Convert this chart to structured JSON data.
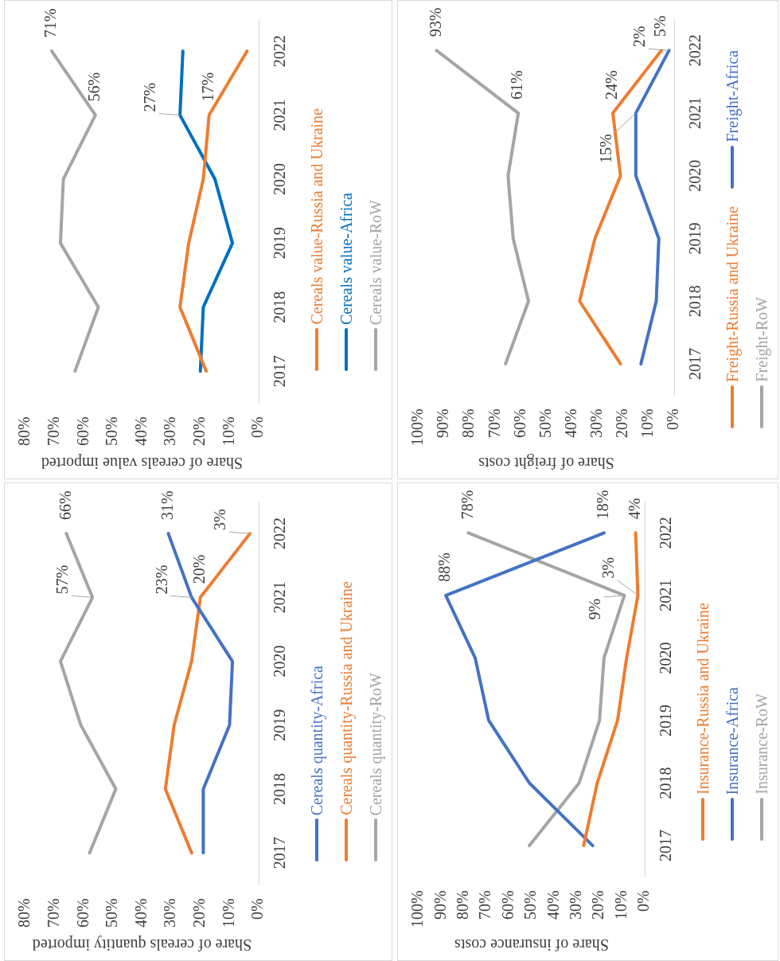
{
  "chart_data": [
    {
      "type": "line",
      "orientation": "horizontal",
      "xlabel": "Share of cereals value imported",
      "legend": "right",
      "marker": "none",
      "categories": [
        "2022",
        "2021",
        "2020",
        "2019",
        "2018",
        "2017"
      ],
      "xlim": [
        80,
        0
      ],
      "xticks": [
        {
          "value": 80,
          "label": "80%"
        },
        {
          "value": 70,
          "label": "70%"
        },
        {
          "value": 60,
          "label": "60%"
        },
        {
          "value": 50,
          "label": "50%"
        },
        {
          "value": 40,
          "label": "40%"
        },
        {
          "value": 30,
          "label": "30%"
        },
        {
          "value": 20,
          "label": "20%"
        },
        {
          "value": 10,
          "label": "10%"
        },
        {
          "value": 0,
          "label": "0%"
        }
      ],
      "series": [
        {
          "name": "Cereals value-Russia and Ukraine",
          "color": "#ed7d31",
          "values": [
            4,
            17,
            19,
            24,
            27,
            18
          ],
          "value_labels": [
            null,
            "17%",
            null,
            null,
            null,
            null
          ]
        },
        {
          "name": "Cereals value-Africa",
          "color": "#0070c0",
          "values": [
            26,
            27,
            15,
            9,
            19,
            20
          ],
          "value_labels": [
            null,
            "27%",
            null,
            null,
            null,
            null
          ]
        },
        {
          "name": "Cereals value-RoW",
          "color": "#a5a5a5",
          "values": [
            71,
            56,
            67,
            68,
            55,
            63
          ],
          "value_labels": [
            "71%",
            "56%",
            null,
            null,
            null,
            null
          ]
        }
      ]
    },
    {
      "type": "line",
      "orientation": "horizontal",
      "xlabel": "Share of cereals quantity imported",
      "legend": "right",
      "marker": "none",
      "categories": [
        "2022",
        "2021",
        "2020",
        "2019",
        "2018",
        "2017"
      ],
      "xlim": [
        80,
        0
      ],
      "xticks": [
        {
          "value": 80,
          "label": "80%"
        },
        {
          "value": 70,
          "label": "70%"
        },
        {
          "value": 60,
          "label": "60%"
        },
        {
          "value": 50,
          "label": "50%"
        },
        {
          "value": 40,
          "label": "40%"
        },
        {
          "value": 30,
          "label": "30%"
        },
        {
          "value": 20,
          "label": "20%"
        },
        {
          "value": 10,
          "label": "10%"
        },
        {
          "value": 0,
          "label": "0%"
        }
      ],
      "series": [
        {
          "name": "Cereals quantity-Africa",
          "color": "#4472c4",
          "values": [
            31,
            23,
            9,
            10,
            19,
            19
          ],
          "value_labels": [
            "31%",
            "23%",
            null,
            null,
            null,
            null
          ]
        },
        {
          "name": "Cereals quantity-Russia and Ukraine",
          "color": "#ed7d31",
          "values": [
            3,
            20,
            23,
            29,
            32,
            23
          ],
          "value_labels": [
            "3%",
            "20%",
            null,
            null,
            null,
            null
          ]
        },
        {
          "name": "Cereals quantity-RoW",
          "color": "#a5a5a5",
          "values": [
            66,
            57,
            68,
            61,
            49,
            58
          ],
          "value_labels": [
            "66%",
            "57%",
            null,
            null,
            null,
            null
          ]
        }
      ]
    },
    {
      "type": "line",
      "orientation": "horizontal",
      "xlabel": "Share of freight costs",
      "legend": "right",
      "marker": "none",
      "categories": [
        "2022",
        "2021",
        "2020",
        "2019",
        "2018",
        "2017"
      ],
      "xlim": [
        100,
        0
      ],
      "xticks": [
        {
          "value": 100,
          "label": "100%"
        },
        {
          "value": 90,
          "label": "90%"
        },
        {
          "value": 80,
          "label": "80%"
        },
        {
          "value": 70,
          "label": "70%"
        },
        {
          "value": 60,
          "label": "60%"
        },
        {
          "value": 50,
          "label": "50%"
        },
        {
          "value": 40,
          "label": "40%"
        },
        {
          "value": 30,
          "label": "30%"
        },
        {
          "value": 20,
          "label": "20%"
        },
        {
          "value": 10,
          "label": "10%"
        },
        {
          "value": 0,
          "label": "0%"
        }
      ],
      "series": [
        {
          "name": "Freight-Russia and Ukraine",
          "color": "#ed7d31",
          "values": [
            5,
            24,
            21,
            31,
            37,
            21
          ],
          "value_labels": [
            "5%",
            "24%",
            null,
            null,
            null,
            null
          ]
        },
        {
          "name": "Freight-Africa",
          "color": "#4472c4",
          "values": [
            2,
            15,
            15,
            6,
            7,
            13
          ],
          "value_labels": [
            "2%",
            "15%",
            null,
            null,
            null,
            null
          ]
        },
        {
          "name": "Freight-RoW",
          "color": "#a5a5a5",
          "values": [
            93,
            61,
            65,
            63,
            57,
            66
          ],
          "value_labels": [
            "93%",
            "61%",
            null,
            null,
            null,
            null
          ]
        }
      ]
    },
    {
      "type": "line",
      "orientation": "horizontal",
      "xlabel": "Share of insurance costs",
      "legend": "right",
      "marker": "none",
      "categories": [
        "2022",
        "2021",
        "2020",
        "2019",
        "2018",
        "2017"
      ],
      "xlim": [
        100,
        0
      ],
      "xticks": [
        {
          "value": 100,
          "label": "100%"
        },
        {
          "value": 90,
          "label": "90%"
        },
        {
          "value": 80,
          "label": "80%"
        },
        {
          "value": 70,
          "label": "70%"
        },
        {
          "value": 60,
          "label": "60%"
        },
        {
          "value": 50,
          "label": "50%"
        },
        {
          "value": 40,
          "label": "40%"
        },
        {
          "value": 30,
          "label": "30%"
        },
        {
          "value": 20,
          "label": "20%"
        },
        {
          "value": 10,
          "label": "10%"
        },
        {
          "value": 0,
          "label": "0%"
        }
      ],
      "series": [
        {
          "name": "Insurance-Russia and Ukraine",
          "color": "#ed7d31",
          "values": [
            4,
            3,
            8,
            12,
            21,
            27
          ],
          "value_labels": [
            "4%",
            "3%",
            null,
            null,
            null,
            null
          ]
        },
        {
          "name": "Insurance-Africa",
          "color": "#4472c4",
          "values": [
            18,
            88,
            75,
            69,
            51,
            23
          ],
          "value_labels": [
            "18%",
            "88%",
            null,
            null,
            null,
            null
          ]
        },
        {
          "name": "Insurance-RoW",
          "color": "#a5a5a5",
          "values": [
            78,
            9,
            18,
            20,
            29,
            51
          ],
          "value_labels": [
            "78%",
            "9%",
            null,
            null,
            null,
            null
          ]
        }
      ]
    }
  ]
}
